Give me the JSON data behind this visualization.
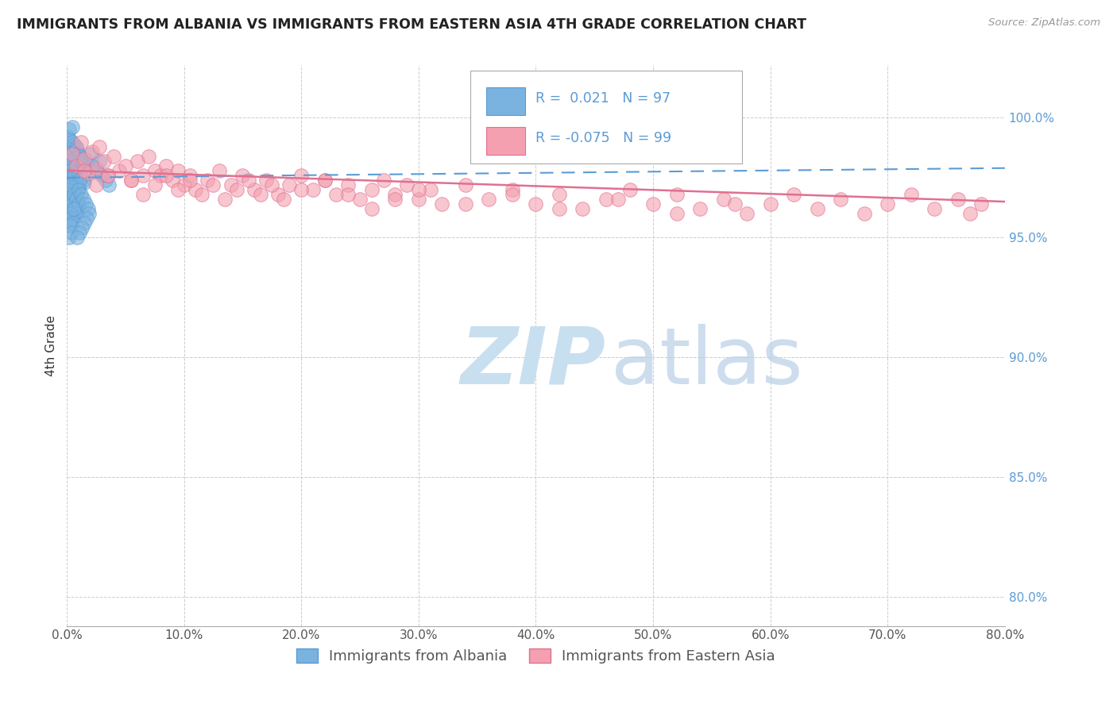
{
  "title": "IMMIGRANTS FROM ALBANIA VS IMMIGRANTS FROM EASTERN ASIA 4TH GRADE CORRELATION CHART",
  "source": "Source: ZipAtlas.com",
  "ylabel": "4th Grade",
  "legend_label1": "Immigrants from Albania",
  "legend_label2": "Immigrants from Eastern Asia",
  "r1": 0.021,
  "n1": 97,
  "r2": -0.075,
  "n2": 99,
  "color1": "#7ab3e0",
  "color2": "#f4a0b0",
  "trendline1_color": "#5b9bd5",
  "trendline2_color": "#e07090",
  "xlim": [
    0.0,
    0.8
  ],
  "ylim": [
    0.788,
    1.022
  ],
  "yticks": [
    0.8,
    0.85,
    0.9,
    0.95,
    1.0
  ],
  "xticks": [
    0.0,
    0.1,
    0.2,
    0.3,
    0.4,
    0.5,
    0.6,
    0.7,
    0.8
  ],
  "albania_x": [
    0.001,
    0.001,
    0.002,
    0.002,
    0.002,
    0.003,
    0.003,
    0.003,
    0.004,
    0.004,
    0.004,
    0.005,
    0.005,
    0.005,
    0.005,
    0.006,
    0.006,
    0.006,
    0.007,
    0.007,
    0.007,
    0.008,
    0.008,
    0.008,
    0.009,
    0.009,
    0.01,
    0.01,
    0.01,
    0.011,
    0.011,
    0.012,
    0.012,
    0.013,
    0.013,
    0.014,
    0.014,
    0.015,
    0.015,
    0.016,
    0.001,
    0.002,
    0.002,
    0.003,
    0.003,
    0.004,
    0.004,
    0.005,
    0.005,
    0.006,
    0.006,
    0.007,
    0.007,
    0.008,
    0.008,
    0.009,
    0.009,
    0.01,
    0.01,
    0.011,
    0.001,
    0.002,
    0.003,
    0.004,
    0.005,
    0.006,
    0.007,
    0.008,
    0.009,
    0.01,
    0.001,
    0.002,
    0.003,
    0.004,
    0.005,
    0.006,
    0.002,
    0.003,
    0.004,
    0.02,
    0.022,
    0.025,
    0.028,
    0.03,
    0.033,
    0.036,
    0.01,
    0.012,
    0.014,
    0.016,
    0.018,
    0.019,
    0.017,
    0.015,
    0.013,
    0.011,
    0.009
  ],
  "albania_y": [
    0.988,
    0.992,
    0.985,
    0.979,
    0.995,
    0.983,
    0.976,
    0.991,
    0.987,
    0.98,
    0.973,
    0.99,
    0.984,
    0.977,
    0.996,
    0.982,
    0.975,
    0.989,
    0.986,
    0.979,
    0.972,
    0.988,
    0.981,
    0.974,
    0.987,
    0.98,
    0.985,
    0.978,
    0.971,
    0.984,
    0.977,
    0.983,
    0.976,
    0.982,
    0.975,
    0.981,
    0.974,
    0.98,
    0.973,
    0.979,
    0.975,
    0.982,
    0.969,
    0.978,
    0.965,
    0.975,
    0.962,
    0.972,
    0.959,
    0.969,
    0.966,
    0.976,
    0.963,
    0.973,
    0.96,
    0.97,
    0.967,
    0.977,
    0.964,
    0.974,
    0.97,
    0.968,
    0.972,
    0.966,
    0.964,
    0.968,
    0.962,
    0.966,
    0.96,
    0.964,
    0.958,
    0.956,
    0.96,
    0.958,
    0.956,
    0.962,
    0.95,
    0.955,
    0.952,
    0.985,
    0.98,
    0.978,
    0.982,
    0.976,
    0.974,
    0.972,
    0.97,
    0.968,
    0.966,
    0.964,
    0.962,
    0.96,
    0.958,
    0.956,
    0.954,
    0.952,
    0.95
  ],
  "eastern_x": [
    0.005,
    0.008,
    0.012,
    0.015,
    0.018,
    0.022,
    0.025,
    0.028,
    0.032,
    0.035,
    0.04,
    0.045,
    0.05,
    0.055,
    0.06,
    0.065,
    0.07,
    0.075,
    0.08,
    0.085,
    0.09,
    0.095,
    0.1,
    0.105,
    0.11,
    0.12,
    0.13,
    0.14,
    0.15,
    0.16,
    0.17,
    0.18,
    0.19,
    0.2,
    0.21,
    0.22,
    0.23,
    0.24,
    0.25,
    0.26,
    0.27,
    0.28,
    0.29,
    0.3,
    0.31,
    0.32,
    0.34,
    0.36,
    0.38,
    0.4,
    0.42,
    0.44,
    0.46,
    0.48,
    0.5,
    0.52,
    0.54,
    0.56,
    0.58,
    0.6,
    0.62,
    0.64,
    0.66,
    0.68,
    0.7,
    0.72,
    0.74,
    0.76,
    0.77,
    0.78,
    0.015,
    0.025,
    0.035,
    0.055,
    0.065,
    0.075,
    0.085,
    0.095,
    0.105,
    0.115,
    0.125,
    0.135,
    0.145,
    0.155,
    0.165,
    0.175,
    0.185,
    0.2,
    0.22,
    0.24,
    0.26,
    0.28,
    0.3,
    0.34,
    0.38,
    0.42,
    0.47,
    0.52,
    0.57
  ],
  "eastern_y": [
    0.985,
    0.98,
    0.99,
    0.983,
    0.977,
    0.986,
    0.979,
    0.988,
    0.982,
    0.976,
    0.984,
    0.978,
    0.98,
    0.974,
    0.982,
    0.976,
    0.984,
    0.978,
    0.976,
    0.98,
    0.974,
    0.978,
    0.972,
    0.976,
    0.97,
    0.974,
    0.978,
    0.972,
    0.976,
    0.97,
    0.974,
    0.968,
    0.972,
    0.976,
    0.97,
    0.974,
    0.968,
    0.972,
    0.966,
    0.97,
    0.974,
    0.968,
    0.972,
    0.966,
    0.97,
    0.964,
    0.972,
    0.966,
    0.97,
    0.964,
    0.968,
    0.962,
    0.966,
    0.97,
    0.964,
    0.968,
    0.962,
    0.966,
    0.96,
    0.964,
    0.968,
    0.962,
    0.966,
    0.96,
    0.964,
    0.968,
    0.962,
    0.966,
    0.96,
    0.964,
    0.978,
    0.972,
    0.976,
    0.974,
    0.968,
    0.972,
    0.976,
    0.97,
    0.974,
    0.968,
    0.972,
    0.966,
    0.97,
    0.974,
    0.968,
    0.972,
    0.966,
    0.97,
    0.974,
    0.968,
    0.962,
    0.966,
    0.97,
    0.964,
    0.968,
    0.962,
    0.966,
    0.96,
    0.964
  ],
  "watermark_zip": "ZIP",
  "watermark_atlas": "atlas",
  "watermark_color_zip": "#c8dff0",
  "watermark_color_atlas": "#b8cfe8",
  "background_color": "#ffffff",
  "grid_color": "#cccccc",
  "title_color": "#222222",
  "axis_label_color": "#333333",
  "tick_label_color": "#555555",
  "right_axis_color": "#5b9bd5",
  "legend_fontsize": 13,
  "title_fontsize": 12.5
}
